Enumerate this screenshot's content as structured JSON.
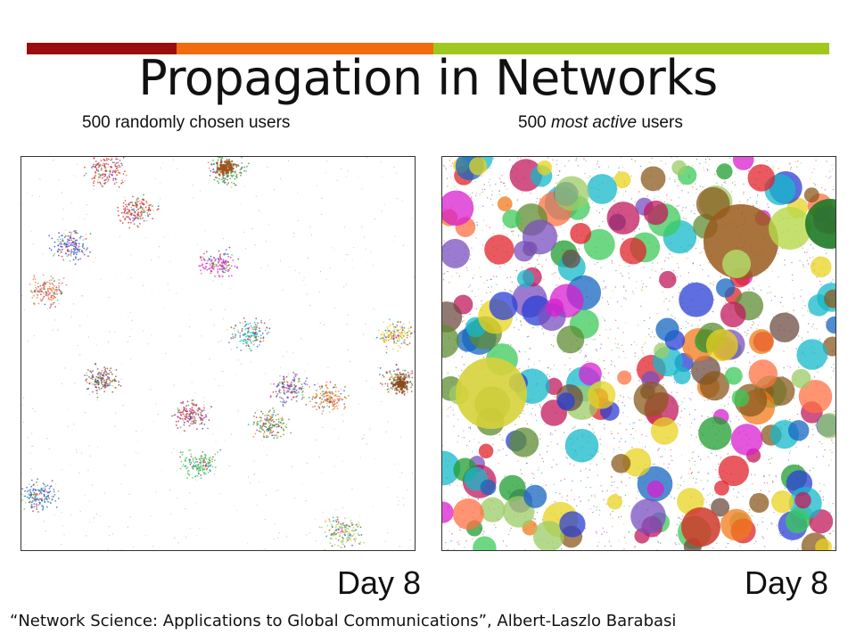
{
  "title": "Propagation in Networks",
  "accent_colors": [
    "#9b0d0d",
    "#f26b0e",
    "#a0c81e"
  ],
  "panels": [
    {
      "label_plain": "500 randomly chosen users",
      "day_label": "Day 8"
    },
    {
      "label_prefix": "500 ",
      "label_emphasis": "most active",
      "label_suffix": " users",
      "day_label": "Day 8"
    }
  ],
  "citation": "“Network Science: Applications to Global Communications”, Albert-Laszlo Barabasi"
}
